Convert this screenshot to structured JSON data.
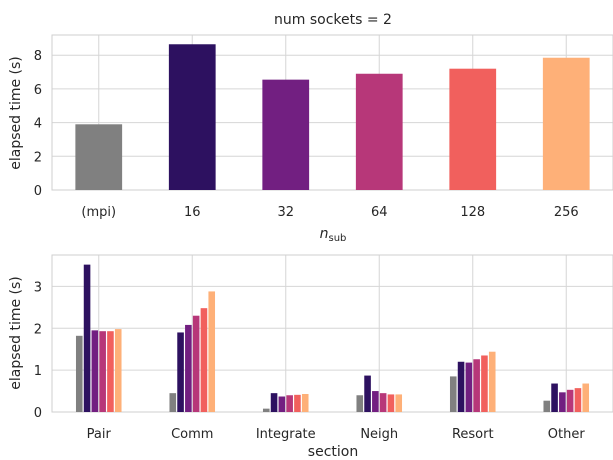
{
  "chart_data": [
    {
      "type": "bar",
      "title": "num sockets = 2",
      "xlabel_base": "n",
      "xlabel_sub": "sub",
      "ylabel": "elapsed time (s)",
      "categories": [
        "(mpi)",
        "16",
        "32",
        "64",
        "128",
        "256"
      ],
      "values": [
        3.9,
        8.65,
        6.55,
        6.9,
        7.2,
        7.85
      ],
      "colors": [
        "#808080",
        "#2d1160",
        "#721f81",
        "#b73779",
        "#f1605d",
        "#feb078"
      ],
      "ylim": [
        0,
        9.2
      ],
      "yticks": [
        0,
        2,
        4,
        6,
        8
      ],
      "grid": true
    },
    {
      "type": "bar",
      "xlabel": "section",
      "ylabel": "elapsed time (s)",
      "categories": [
        "Pair",
        "Comm",
        "Integrate",
        "Neigh",
        "Resort",
        "Other"
      ],
      "series": [
        {
          "values": [
            1.82,
            0.45,
            0.08,
            0.4,
            0.85,
            0.27
          ],
          "color": "#808080"
        },
        {
          "values": [
            3.52,
            1.9,
            0.45,
            0.87,
            1.2,
            0.68
          ],
          "color": "#2d1160"
        },
        {
          "values": [
            1.95,
            2.08,
            0.37,
            0.5,
            1.18,
            0.47
          ],
          "color": "#721f81"
        },
        {
          "values": [
            1.93,
            2.3,
            0.4,
            0.45,
            1.26,
            0.53
          ],
          "color": "#b73779"
        },
        {
          "values": [
            1.93,
            2.48,
            0.41,
            0.42,
            1.35,
            0.57
          ],
          "color": "#f1605d"
        },
        {
          "values": [
            1.98,
            2.88,
            0.43,
            0.42,
            1.44,
            0.68
          ],
          "color": "#feb078"
        }
      ],
      "ylim": [
        0,
        3.75
      ],
      "yticks": [
        0,
        1,
        2,
        3
      ],
      "grid": true
    }
  ]
}
